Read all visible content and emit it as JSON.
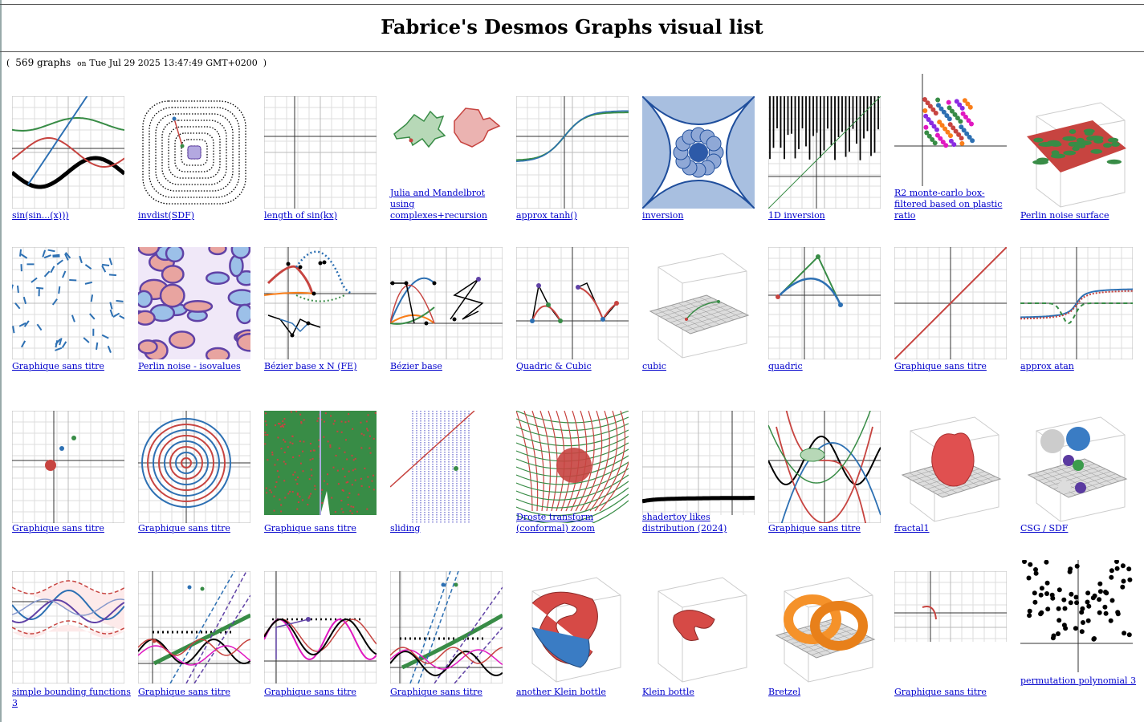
{
  "page": {
    "title": "Fabrice's Desmos Graphs visual list",
    "count": "569 graphs",
    "on_label": "on",
    "date": "Tue Jul 29 2025 13:47:49 GMT+0200"
  },
  "rows": [
    [
      {
        "title": "sin(sin...(x)))",
        "icon": "sine-iterations"
      },
      {
        "title": "invdist(SDF)",
        "icon": "rounded-square-contours"
      },
      {
        "title": "length of sin(kx)",
        "icon": "blank-grid"
      },
      {
        "title": "Julia and Mandelbrot using complexes+recursion",
        "icon": "fractal-sets"
      },
      {
        "title": "approx tanh()",
        "icon": "tanh-curve"
      },
      {
        "title": "inversion",
        "icon": "circle-inversion"
      },
      {
        "title": "1D inversion",
        "icon": "vertical-lines"
      },
      {
        "title": "R2 monte-carlo box-filtered based on plastic ratio",
        "icon": "colored-dots"
      },
      {
        "title": "Perlin noise surface",
        "icon": "3d-noise-surface"
      }
    ],
    [
      {
        "title": "Graphique sans titre",
        "icon": "random-segments"
      },
      {
        "title": "Perlin noise - isovalues",
        "icon": "noise-isolines"
      },
      {
        "title": "Bézier base x N (FE)",
        "icon": "bezier-dotted"
      },
      {
        "title": "Bézier base",
        "icon": "bezier-base"
      },
      {
        "title": "Quadric & Cubic",
        "icon": "bezier-control-polygons"
      },
      {
        "title": "cubic",
        "icon": "3d-cubic"
      },
      {
        "title": "quadric",
        "icon": "quadric-curve"
      },
      {
        "title": "Graphique sans titre",
        "icon": "diagonal-line"
      },
      {
        "title": "approx atan",
        "icon": "atan-curve"
      }
    ],
    [
      {
        "title": "Graphique sans titre",
        "icon": "points"
      },
      {
        "title": "Graphique sans titre",
        "icon": "spiral"
      },
      {
        "title": "Graphique sans titre",
        "icon": "green-noise"
      },
      {
        "title": "sliding",
        "icon": "sliding-lines"
      },
      {
        "title": "Droste transform (conformal) zoom",
        "icon": "droste-grid"
      },
      {
        "title": "shadertoy likes distribution (2024)",
        "icon": "distribution-curve"
      },
      {
        "title": "Graphique sans titre",
        "icon": "polynomial-curves"
      },
      {
        "title": "fractal1",
        "icon": "3d-fractal"
      },
      {
        "title": "CSG / SDF",
        "icon": "3d-spheres"
      }
    ],
    [
      {
        "title": "simple bounding functions 3",
        "icon": "bounding-waves"
      },
      {
        "title": "Graphique sans titre",
        "icon": "fitting-curves"
      },
      {
        "title": "Graphique sans titre",
        "icon": "smooth-bumps"
      },
      {
        "title": "Graphique sans titre",
        "icon": "fitting-curves-2"
      },
      {
        "title": "another Klein bottle",
        "icon": "3d-klein-bottle"
      },
      {
        "title": "Klein bottle",
        "icon": "3d-klein-bottle-small"
      },
      {
        "title": "Bretzel",
        "icon": "3d-bretzel"
      },
      {
        "title": "Graphique sans titre",
        "icon": "small-curve"
      },
      {
        "title": "permutation polynomial 3",
        "icon": "scatter-dots"
      }
    ]
  ]
}
